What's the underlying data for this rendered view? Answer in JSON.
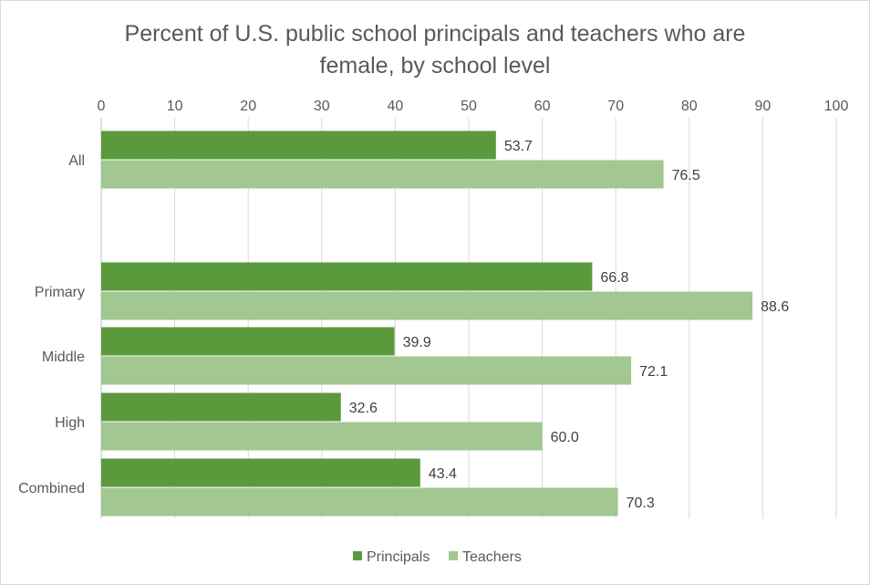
{
  "chart_data": {
    "type": "bar",
    "orientation": "horizontal",
    "title_lines": [
      "Percent of U.S. public school principals and teachers who are",
      "female, by school level"
    ],
    "categories": [
      "All",
      "",
      "Primary",
      "Middle",
      "High",
      "Combined"
    ],
    "series": [
      {
        "name": "Principals",
        "color": "#5b9a3c",
        "values": [
          53.7,
          null,
          66.8,
          39.9,
          32.6,
          43.4
        ]
      },
      {
        "name": "Teachers",
        "color": "#a2c791",
        "values": [
          76.5,
          null,
          88.6,
          72.1,
          60.0,
          70.3
        ]
      }
    ],
    "data_labels": {
      "Principals": [
        "53.7",
        "",
        "66.8",
        "39.9",
        "32.6",
        "43.4"
      ],
      "Teachers": [
        "76.5",
        "",
        "88.6",
        "72.1",
        "60.0",
        "70.3"
      ]
    },
    "xlim": [
      0,
      100
    ],
    "x_ticks": [
      "0",
      "10",
      "20",
      "30",
      "40",
      "50",
      "60",
      "70",
      "80",
      "90",
      "100"
    ],
    "x_axis_position": "top",
    "grid": true,
    "legend_position": "bottom"
  }
}
